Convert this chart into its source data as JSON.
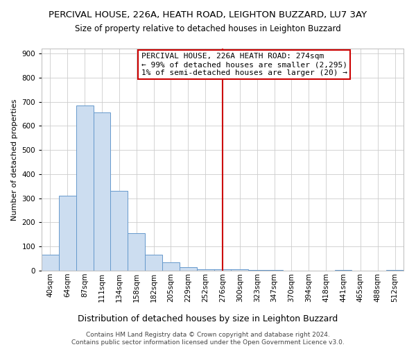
{
  "title": "PERCIVAL HOUSE, 226A, HEATH ROAD, LEIGHTON BUZZARD, LU7 3AY",
  "subtitle": "Size of property relative to detached houses in Leighton Buzzard",
  "xlabel": "Distribution of detached houses by size in Leighton Buzzard",
  "ylabel": "Number of detached properties",
  "footer_line1": "Contains HM Land Registry data © Crown copyright and database right 2024.",
  "footer_line2": "Contains public sector information licensed under the Open Government Licence v3.0.",
  "bin_labels": [
    "40sqm",
    "64sqm",
    "87sqm",
    "111sqm",
    "134sqm",
    "158sqm",
    "182sqm",
    "205sqm",
    "229sqm",
    "252sqm",
    "276sqm",
    "300sqm",
    "323sqm",
    "347sqm",
    "370sqm",
    "394sqm",
    "418sqm",
    "441sqm",
    "465sqm",
    "488sqm",
    "512sqm"
  ],
  "bar_heights": [
    65,
    310,
    685,
    655,
    330,
    155,
    65,
    35,
    15,
    5,
    5,
    5,
    2,
    2,
    0,
    0,
    0,
    2,
    0,
    0,
    2
  ],
  "bar_color": "#ccddf0",
  "bar_edge_color": "#6699cc",
  "vline_x": 10,
  "vline_color": "#cc0000",
  "annotation_line1": "PERCIVAL HOUSE, 226A HEATH ROAD: 274sqm",
  "annotation_line2": "← 99% of detached houses are smaller (2,295)",
  "annotation_line3": "1% of semi-detached houses are larger (20) →",
  "ylim": [
    0,
    920
  ],
  "yticks": [
    0,
    100,
    200,
    300,
    400,
    500,
    600,
    700,
    800,
    900
  ],
  "background_color": "#ffffff",
  "grid_color": "#cccccc",
  "title_fontsize": 9.5,
  "subtitle_fontsize": 8.5,
  "annotation_fontsize": 8.0,
  "ylabel_fontsize": 8.0,
  "xlabel_fontsize": 9.0,
  "tick_fontsize": 7.5,
  "footer_fontsize": 6.5
}
